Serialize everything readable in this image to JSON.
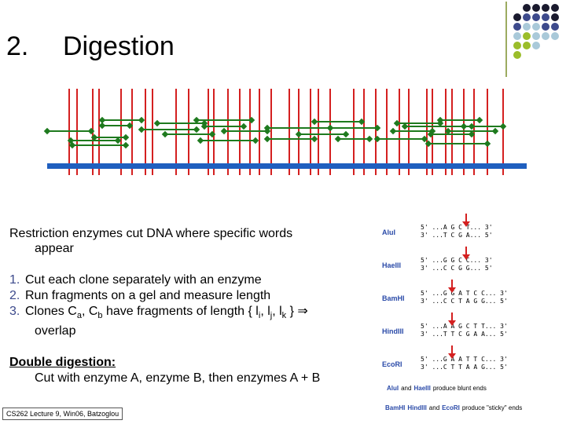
{
  "slide": {
    "number": "2.",
    "title": "Digestion",
    "intro_line1": "Restriction enzymes cut DNA where specific words",
    "intro_line2": "appear",
    "steps": [
      {
        "num": "1.",
        "text": "Cut each clone separately with an enzyme"
      },
      {
        "num": "2.",
        "text": "Run fragments on a gel and measure length"
      },
      {
        "num": "3.",
        "pre": "Clones C",
        "sub_a": "a",
        "mid": ", C",
        "sub_b": "b",
        "post": " have fragments of length { l",
        "sub_i": "i",
        "c1": ", l",
        "sub_j": "j",
        "c2": ", l",
        "sub_k": "k",
        "end": " } ⇒",
        "cont": "overlap"
      }
    ],
    "double_heading": "Double digestion:",
    "double_text": "Cut with enzyme A, enzyme B, then enzymes A + B",
    "footer": "CS262 Lecture 9, Win06, Batzoglou"
  },
  "enzymes": [
    {
      "name": "AluI",
      "top": "5' ...A G C T... 3'",
      "bottom": "3' ...T C G A... 5'"
    },
    {
      "name": "HaeIII",
      "top": "5' ...G G C C... 3'",
      "bottom": "3' ...C C G G... 5'"
    },
    {
      "name": "BamHI",
      "top": "5' ...G G A T C C... 3'",
      "bottom": "3' ...C C T A G G... 5'"
    },
    {
      "name": "HindIII",
      "top": "5' ...A A G C T T... 3'",
      "bottom": "3' ...T T C G A A... 5'"
    },
    {
      "name": "EcoRI",
      "top": "5' ...G A A T T C... 3'",
      "bottom": "3' ...C T T A A G... 5'"
    }
  ],
  "enzyme_notes": {
    "blunt_a": "AluI",
    "blunt_and": "and",
    "blunt_b": "HaeIII",
    "blunt_text": "produce blunt ends",
    "sticky_a": "BamHI",
    "sticky_b": "HindIII",
    "sticky_and": "and",
    "sticky_c": "EcoRI",
    "sticky_text": "produce \"sticky\" ends"
  },
  "colors": {
    "genome_bar": "#1f5fbf",
    "cut_line": "#d42020",
    "clone_line": "#1e7a1e",
    "step_number": "#3d4a8c",
    "enzyme_name": "#2a4aa8",
    "arrow": "#d42020"
  }
}
